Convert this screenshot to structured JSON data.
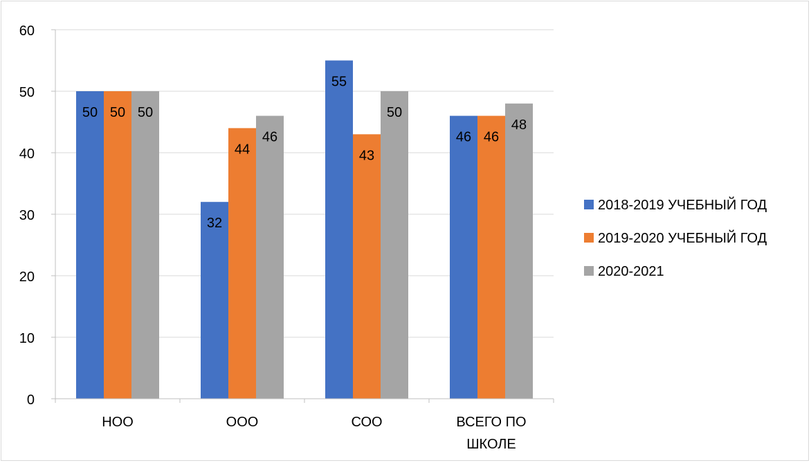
{
  "chart_data": {
    "type": "bar",
    "categories": [
      "НОО",
      "ООО",
      "СОО",
      "ВСЕГО ПО ШКОЛЕ"
    ],
    "series": [
      {
        "name": "2018-2019 УЧЕБНЫЙ ГОД",
        "color": "#4472c4",
        "values": [
          50,
          32,
          55,
          46
        ]
      },
      {
        "name": "2019-2020 УЧЕБНЫЙ ГОД",
        "color": "#ed7d31",
        "values": [
          50,
          44,
          43,
          46
        ]
      },
      {
        "name": "2020-2021",
        "color": "#a5a5a5",
        "values": [
          50,
          46,
          50,
          48
        ]
      }
    ],
    "title": "",
    "xlabel": "",
    "ylabel": "",
    "ylim": [
      0,
      60
    ],
    "yticks": [
      0,
      10,
      20,
      30,
      40,
      50,
      60
    ],
    "grid": true,
    "legend_position": "right",
    "data_labels": true
  }
}
